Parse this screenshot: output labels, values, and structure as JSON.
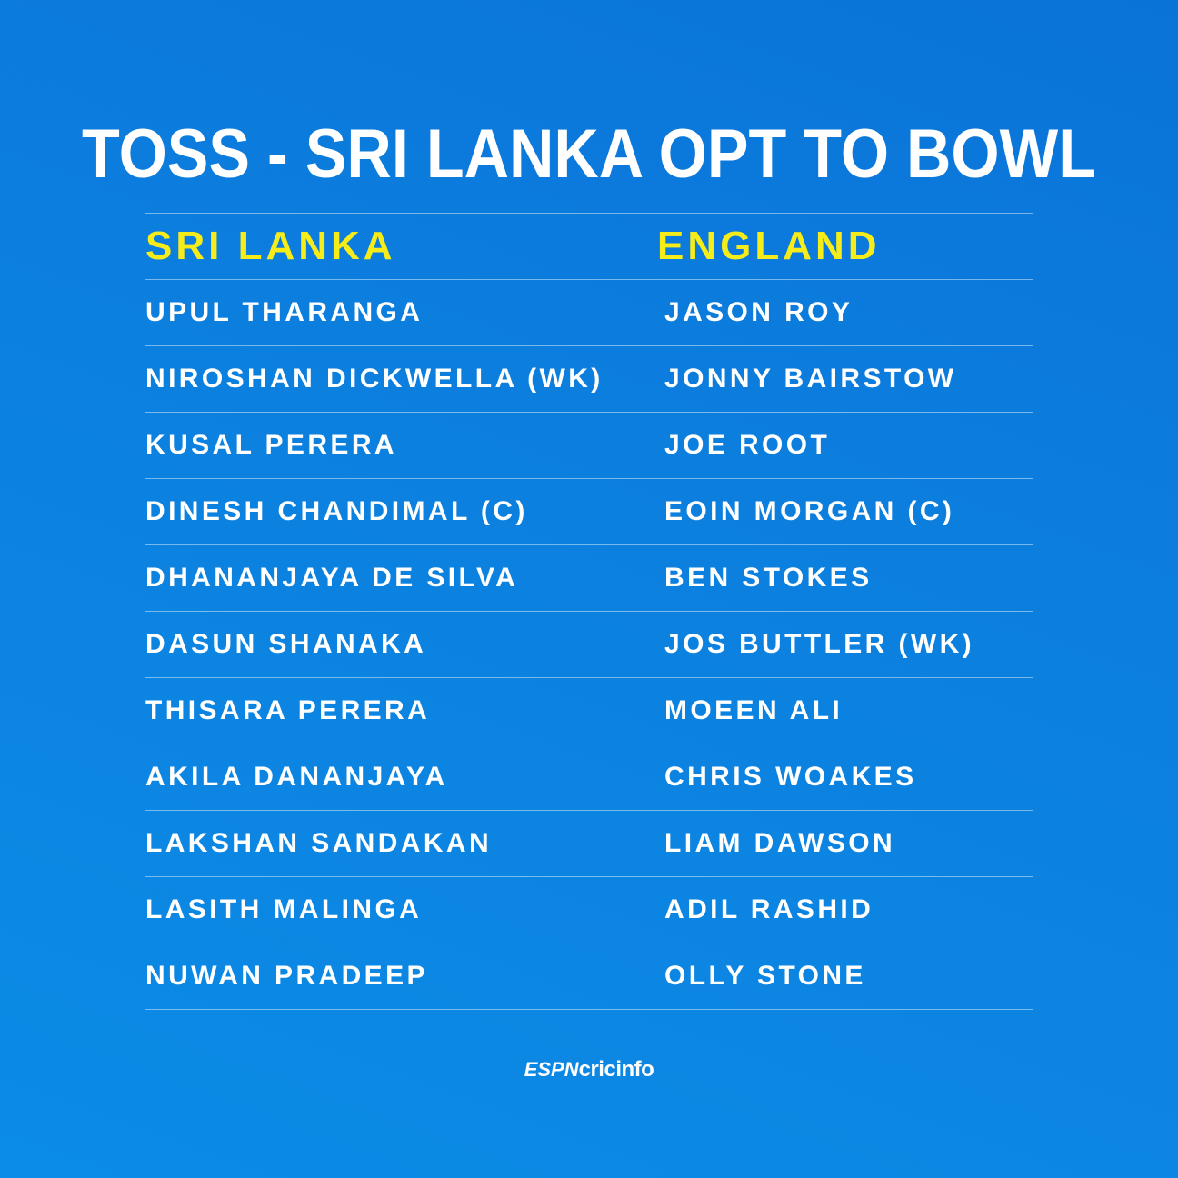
{
  "title": "TOSS - SRI LANKA OPT TO BOWL",
  "teams": {
    "left": "SRI LANKA",
    "right": "ENGLAND"
  },
  "players": {
    "left": [
      "UPUL THARANGA",
      "NIROSHAN DICKWELLA (WK)",
      "KUSAL PERERA",
      "DINESH CHANDIMAL (C)",
      "DHANANJAYA DE SILVA",
      "DASUN SHANAKA",
      "THISARA PERERA",
      "AKILA DANANJAYA",
      "LAKSHAN SANDAKAN",
      "LASITH MALINGA",
      "NUWAN PRADEEP"
    ],
    "right": [
      "JASON ROY",
      "JONNY BAIRSTOW",
      "JOE ROOT",
      "EOIN MORGAN (C)",
      "BEN STOKES",
      "JOS BUTTLER (WK)",
      "MOEEN ALI",
      "CHRIS WOAKES",
      "LIAM DAWSON",
      "ADIL RASHID",
      "OLLY STONE"
    ]
  },
  "logo": {
    "espn": "ESPN",
    "cricinfo": "cricinfo"
  },
  "colors": {
    "background": "#0c80df",
    "team_heading": "#f5ec1a",
    "text": "#ffffff"
  }
}
